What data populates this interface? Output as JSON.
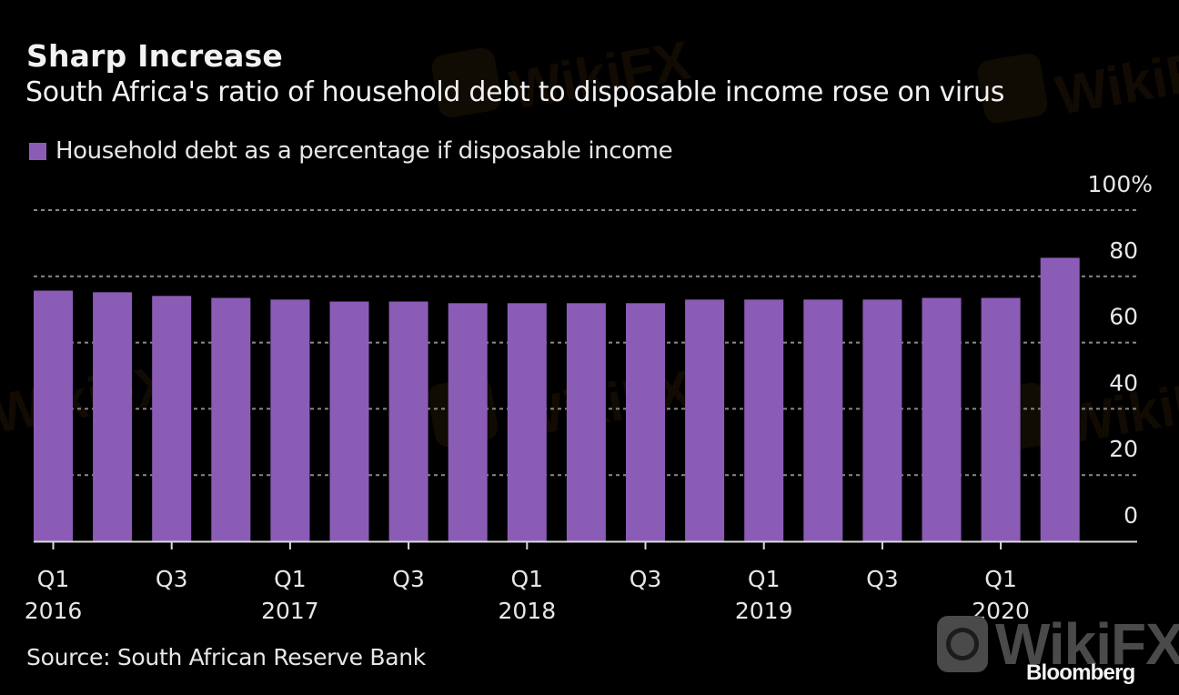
{
  "header": {
    "title": "Sharp Increase",
    "subtitle": "South Africa's ratio of household debt to disposable income rose on virus"
  },
  "legend": {
    "label": "Household debt as a percentage if disposable income",
    "color": "#8b5cb6"
  },
  "footer": {
    "source": "Source: South African Reserve Bank",
    "brand": "Bloomberg",
    "watermark": "WikiFX"
  },
  "colors": {
    "bar": "#8b5cb6",
    "background": "#000000",
    "grid": "#8a8a8a",
    "axis": "#d9d9d9",
    "text": "#e6e6e6"
  },
  "chart_data": {
    "type": "bar",
    "title": "Sharp Increase",
    "subtitle": "South Africa's ratio of household debt to disposable income rose on virus",
    "xlabel": "",
    "ylabel": "",
    "ylim": [
      0,
      100
    ],
    "grid": true,
    "legend_position": "top-left",
    "y_axis_position": "right",
    "y_ticks": [
      0,
      20,
      40,
      60,
      80,
      100
    ],
    "y_tick_labels": [
      "0",
      "20",
      "40",
      "60",
      "80",
      "100%"
    ],
    "categories": [
      "Q1 2016",
      "Q2 2016",
      "Q3 2016",
      "Q4 2016",
      "Q1 2017",
      "Q2 2017",
      "Q3 2017",
      "Q4 2017",
      "Q1 2018",
      "Q2 2018",
      "Q3 2018",
      "Q4 2018",
      "Q1 2019",
      "Q2 2019",
      "Q3 2019",
      "Q4 2019",
      "Q1 2020",
      "Q2 2020"
    ],
    "x_tick_labels": [
      {
        "index": 0,
        "line1": "Q1",
        "line2": "2016"
      },
      {
        "index": 2,
        "line1": "Q3",
        "line2": ""
      },
      {
        "index": 4,
        "line1": "Q1",
        "line2": "2017"
      },
      {
        "index": 6,
        "line1": "Q3",
        "line2": ""
      },
      {
        "index": 8,
        "line1": "Q1",
        "line2": "2018"
      },
      {
        "index": 10,
        "line1": "Q3",
        "line2": ""
      },
      {
        "index": 12,
        "line1": "Q1",
        "line2": "2019"
      },
      {
        "index": 14,
        "line1": "Q3",
        "line2": ""
      },
      {
        "index": 16,
        "line1": "Q1",
        "line2": "2020"
      }
    ],
    "series": [
      {
        "name": "Household debt as a percentage if disposable income",
        "values": [
          75.7,
          75.2,
          74.1,
          73.5,
          73.0,
          72.4,
          72.4,
          71.9,
          71.9,
          71.9,
          71.9,
          73.0,
          73.0,
          73.0,
          73.0,
          73.5,
          73.5,
          85.6
        ]
      }
    ]
  }
}
